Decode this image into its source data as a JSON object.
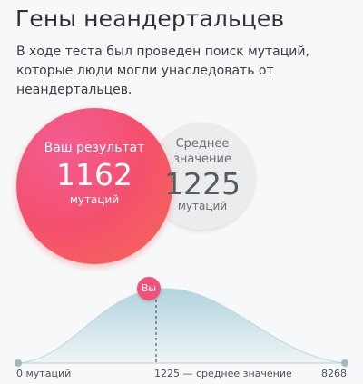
{
  "header": {
    "title": "Гены неандертальцев",
    "description": "В ходе теста был проведен поиск мутаций, которые люди могли унаследовать от неандертальцев."
  },
  "result": {
    "label": "Ваш результат",
    "value": "1162",
    "unit": "мутаций"
  },
  "average": {
    "label": "Среднее значение",
    "value": "1225",
    "unit": "мутаций"
  },
  "distribution": {
    "marker_label": "Вы",
    "min_label": "0 мутаций",
    "avg_label": "1225 — среднее значение",
    "max_label": "8268"
  },
  "colors": {
    "accent": "#f4506e",
    "curve_fill": "#cfe5ec",
    "axis": "#c5c9cc"
  }
}
